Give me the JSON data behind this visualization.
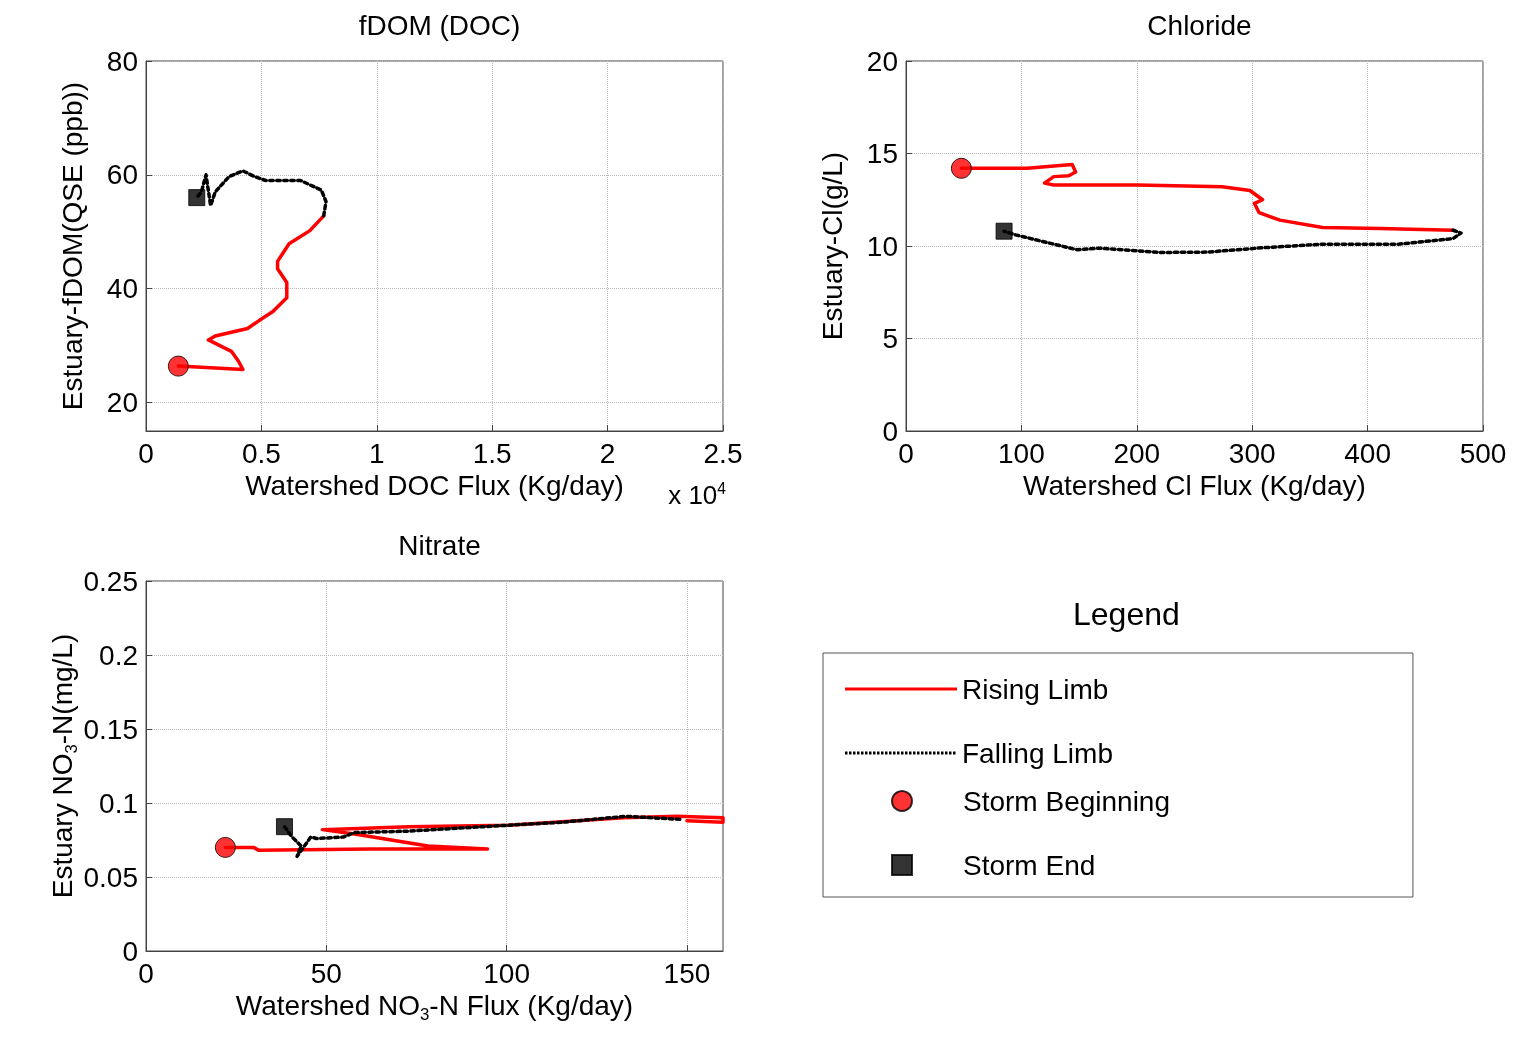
{
  "chart_data": [
    {
      "type": "line",
      "title": "fDOM (DOC)",
      "xlabel": "Watershed DOC Flux (Kg/day)",
      "ylabel": "Estuary-fDOM(QSE (ppb))",
      "annotations": [
        "x 10$^{4}$"
      ],
      "xlim": [
        0,
        2.5
      ],
      "xticks": [
        0,
        0.5,
        1,
        1.5,
        2,
        2.5
      ],
      "ylim": [
        15,
        80
      ],
      "yticks": [
        20,
        40,
        60,
        80
      ],
      "grid": true,
      "legend": false,
      "series": [
        {
          "type": "line",
          "color": "#ff0000",
          "line_style": "solid",
          "marker": "none",
          "x": [
            0.14,
            0.42,
            0.4,
            0.37,
            0.32,
            0.27,
            0.3,
            0.44,
            0.49,
            0.55,
            0.61,
            0.61,
            0.57,
            0.57,
            0.62,
            0.71,
            0.77
          ],
          "values": [
            26.4,
            25.8,
            27.3,
            29.0,
            30.0,
            31.0,
            31.7,
            33.0,
            34.4,
            36.0,
            38.4,
            41.1,
            43.5,
            44.8,
            47.9,
            50.2,
            52.8
          ]
        },
        {
          "type": "line",
          "color": "#000000",
          "line_style": "dotted",
          "marker": "none",
          "x": [
            0.77,
            0.78,
            0.76,
            0.67,
            0.52,
            0.47,
            0.42,
            0.36,
            0.3,
            0.28,
            0.26,
            0.24,
            0.22
          ],
          "values": [
            52.8,
            55.3,
            57.3,
            59.0,
            59.0,
            59.7,
            60.7,
            59.7,
            57.0,
            54.6,
            60.0,
            57.0,
            56.0
          ]
        },
        {
          "type": "scatter",
          "color": "#ff0000",
          "marker": "circle",
          "x": [
            0.14
          ],
          "values": [
            26.4
          ]
        },
        {
          "type": "scatter",
          "color": "#000000",
          "marker": "square",
          "x": [
            0.22
          ],
          "values": [
            56.0
          ]
        }
      ]
    },
    {
      "type": "line",
      "title": "Chloride",
      "xlabel": "Watershed Cl Flux (Kg/day)",
      "ylabel": "Estuary-Cl(g/L)",
      "xlim": [
        0,
        500
      ],
      "xticks": [
        0,
        100,
        200,
        300,
        400,
        500
      ],
      "ylim": [
        0,
        20
      ],
      "yticks": [
        0,
        5,
        10,
        15,
        20
      ],
      "grid": true,
      "legend": false,
      "series": [
        {
          "type": "line",
          "color": "#ff0000",
          "line_style": "solid",
          "marker": "none",
          "x": [
            48,
            61,
            105,
            144,
            147,
            141,
            128,
            120,
            128,
            201,
            274,
            298,
            309,
            302,
            306,
            324,
            361,
            411,
            474
          ],
          "values": [
            14.2,
            14.2,
            14.2,
            14.4,
            14.0,
            13.8,
            13.75,
            13.4,
            13.3,
            13.3,
            13.2,
            13.0,
            12.5,
            12.3,
            11.8,
            11.4,
            11.0,
            10.95,
            10.85
          ]
        },
        {
          "type": "line",
          "color": "#000000",
          "line_style": "dotted",
          "marker": "none",
          "x": [
            474,
            481,
            474,
            427,
            361,
            308,
            261,
            221,
            194,
            168,
            148,
            128,
            95,
            85
          ],
          "values": [
            10.85,
            10.7,
            10.4,
            10.1,
            10.1,
            9.9,
            9.67,
            9.65,
            9.77,
            9.88,
            9.8,
            10.1,
            10.6,
            10.8
          ]
        },
        {
          "type": "scatter",
          "color": "#ff0000",
          "marker": "circle",
          "x": [
            48
          ],
          "values": [
            14.2
          ]
        },
        {
          "type": "scatter",
          "color": "#000000",
          "marker": "square",
          "x": [
            85
          ],
          "values": [
            10.8
          ]
        }
      ]
    },
    {
      "type": "line",
      "title": "Nitrate",
      "xlabel": "Watershed NO$_{3}$-N Flux (Kg/day)",
      "ylabel": "Estuary NO$_{3}$-N(mg/L)",
      "legend_title": "Legend",
      "xlim": [
        0,
        160
      ],
      "xticks": [
        0,
        50,
        100,
        150
      ],
      "ylim": [
        0,
        0.25
      ],
      "yticks": [
        0,
        0.05,
        0.1,
        0.15,
        0.2,
        0.25
      ],
      "grid": true,
      "legend": "right",
      "series": [
        {
          "name": "Rising Limb",
          "type": "line",
          "color": "#ff0000",
          "line_style": "solid",
          "marker": "none",
          "x": [
            22,
            29.8,
            31.3,
            62.2,
            94.7,
            78.2,
            57.8,
            48.9,
            72.8,
            100.5,
            132.4,
            147.3,
            160,
            160,
            150
          ],
          "values": [
            0.07,
            0.07,
            0.068,
            0.069,
            0.069,
            0.071,
            0.079,
            0.082,
            0.084,
            0.085,
            0.09,
            0.091,
            0.09,
            0.087,
            0.088
          ]
        },
        {
          "name": "Falling Limb",
          "type": "line",
          "color": "#000000",
          "line_style": "dotted",
          "marker": "none",
          "x": [
            148,
            133,
            115.4,
            100.5,
            72.8,
            57.8,
            54.7,
            47.3,
            45.7,
            41.9,
            43,
            40.5,
            38.4
          ],
          "values": [
            0.089,
            0.091,
            0.087,
            0.085,
            0.081,
            0.08,
            0.077,
            0.076,
            0.077,
            0.064,
            0.071,
            0.077,
            0.084
          ]
        },
        {
          "name": "Storm Beginning",
          "type": "scatter",
          "color": "#ff0000",
          "marker": "circle",
          "x": [
            22
          ],
          "values": [
            0.07
          ]
        },
        {
          "name": "Storm End",
          "type": "scatter",
          "color": "#000000",
          "marker": "square",
          "x": [
            38.4
          ],
          "values": [
            0.084
          ]
        }
      ]
    }
  ]
}
